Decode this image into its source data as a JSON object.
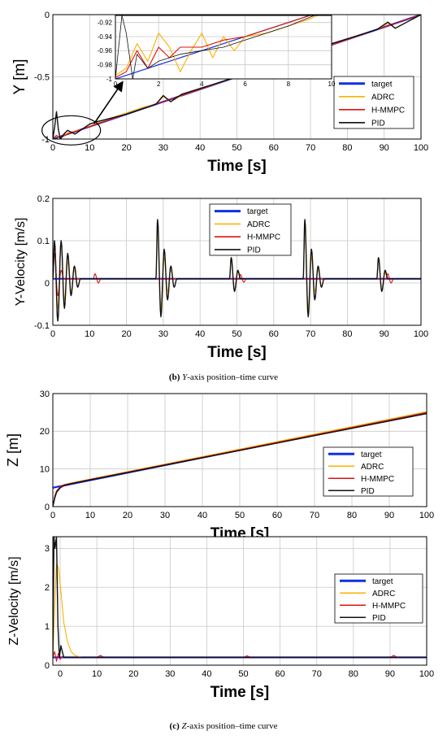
{
  "legend_labels": [
    "target",
    "ADRC",
    "H-MMPC",
    "PID"
  ],
  "colors": {
    "target": "#1030e0",
    "ADRC": "#ffb000",
    "H-MMPC": "#e01010",
    "PID": "#111111",
    "grid": "#c8c8c8"
  },
  "captions": {
    "b": {
      "tag": "(b)",
      "axis": "Y",
      "rest": "-axis position–time curve"
    },
    "c": {
      "tag": "(c)",
      "axis": "Z",
      "rest": "-axis position–time curve"
    }
  },
  "chart_data": [
    {
      "id": "y-position",
      "type": "line",
      "xlabel": "Time [s]",
      "ylabel": "Y [m]",
      "xlim": [
        0,
        100
      ],
      "ylim": [
        -1,
        0
      ],
      "xticks": [
        0,
        10,
        20,
        30,
        40,
        50,
        60,
        70,
        80,
        90,
        100
      ],
      "yticks": [
        {
          "v": -1,
          "t": "-1"
        },
        {
          "v": -0.5,
          "t": "-0.5"
        },
        {
          "v": 0,
          "t": "0"
        }
      ],
      "grid": true,
      "legend": "lower-right",
      "series": [
        {
          "name": "target",
          "x": [
            0,
            100
          ],
          "y": [
            -1,
            0
          ]
        },
        {
          "name": "ADRC",
          "x": [
            0,
            1,
            2,
            4,
            8,
            12,
            25,
            28,
            30,
            32,
            35,
            50,
            68,
            70,
            72,
            75,
            88,
            91,
            93,
            100
          ],
          "y": [
            -0.99,
            -0.97,
            -1.0,
            -0.95,
            -0.92,
            -0.87,
            -0.74,
            -0.72,
            -0.66,
            -0.7,
            -0.65,
            -0.5,
            -0.32,
            -0.26,
            -0.29,
            -0.25,
            -0.12,
            -0.07,
            -0.11,
            0
          ]
        },
        {
          "name": "H-MMPC",
          "x": [
            0,
            1,
            2,
            4,
            10,
            30,
            50,
            70,
            90,
            100
          ],
          "y": [
            -1,
            -0.97,
            -0.99,
            -0.96,
            -0.9,
            -0.7,
            -0.5,
            -0.3,
            -0.1,
            0
          ]
        },
        {
          "name": "PID",
          "x": [
            0,
            0.5,
            1,
            1.5,
            2,
            3,
            4,
            6,
            10,
            12,
            20,
            28,
            30,
            32,
            35,
            50,
            68,
            70,
            72,
            75,
            88,
            91,
            93,
            100
          ],
          "y": [
            -1,
            -0.9,
            -0.78,
            -0.92,
            -1.0,
            -0.96,
            -0.93,
            -0.96,
            -0.88,
            -0.86,
            -0.8,
            -0.72,
            -0.65,
            -0.7,
            -0.64,
            -0.5,
            -0.32,
            -0.25,
            -0.29,
            -0.24,
            -0.12,
            -0.06,
            -0.11,
            0
          ]
        }
      ]
    },
    {
      "id": "y-position-inset",
      "type": "line",
      "xlim": [
        0,
        10
      ],
      "ylim": [
        -1,
        -0.91
      ],
      "xticks": [
        0,
        2,
        4,
        6,
        8,
        10
      ],
      "yticks": [
        {
          "v": -1,
          "t": "-1"
        },
        {
          "v": -0.98,
          "t": "-0.98"
        },
        {
          "v": -0.96,
          "t": "-0.96"
        },
        {
          "v": -0.94,
          "t": "-0.94"
        },
        {
          "v": -0.92,
          "t": "-0.92"
        }
      ],
      "grid": true,
      "series": [
        {
          "name": "target",
          "x": [
            0,
            10
          ],
          "y": [
            -1,
            -0.9
          ]
        },
        {
          "name": "ADRC",
          "x": [
            0,
            0.5,
            1,
            1.5,
            2,
            2.5,
            3,
            3.5,
            4,
            4.5,
            5,
            5.5,
            6,
            7,
            8,
            9,
            10
          ],
          "y": [
            -0.995,
            -0.985,
            -0.95,
            -0.975,
            -0.935,
            -0.955,
            -0.99,
            -0.96,
            -0.935,
            -0.97,
            -0.94,
            -0.96,
            -0.94,
            -0.935,
            -0.925,
            -0.915,
            -0.9
          ]
        },
        {
          "name": "H-MMPC",
          "x": [
            0,
            0.5,
            1,
            1.5,
            2,
            2.5,
            3,
            4,
            5,
            6,
            8,
            10
          ],
          "y": [
            -0.998,
            -0.99,
            -0.96,
            -0.985,
            -0.955,
            -0.97,
            -0.955,
            -0.955,
            -0.945,
            -0.94,
            -0.92,
            -0.9
          ]
        },
        {
          "name": "PID",
          "x": [
            0,
            0.3,
            0.5,
            0.8,
            1,
            1.5,
            2,
            3,
            4,
            5,
            6,
            8,
            10
          ],
          "y": [
            -1,
            -0.91,
            -0.935,
            -1.0,
            -0.965,
            -0.985,
            -0.975,
            -0.965,
            -0.96,
            -0.955,
            -0.945,
            -0.925,
            -0.9
          ]
        }
      ]
    },
    {
      "id": "y-velocity",
      "type": "line",
      "xlabel": "Time [s]",
      "ylabel": "Y-Velocity [m/s]",
      "xlim": [
        0,
        100
      ],
      "ylim": [
        -0.1,
        0.2
      ],
      "xticks": [
        0,
        10,
        20,
        30,
        40,
        50,
        60,
        70,
        80,
        90,
        100
      ],
      "yticks": [
        {
          "v": -0.1,
          "t": "-0.1"
        },
        {
          "v": 0,
          "t": "0"
        },
        {
          "v": 0.1,
          "t": "0.1"
        },
        {
          "v": 0.2,
          "t": "0.2"
        }
      ],
      "grid": true,
      "legend": "top-center",
      "series": [
        {
          "name": "target",
          "x": [
            0,
            100
          ],
          "y": [
            0.01,
            0.01
          ]
        },
        {
          "name": "ADRC",
          "bursts": [
            {
              "t0": 0,
              "amps": [
                0.09,
                -0.07,
                0.08,
                -0.05,
                0.04,
                -0.03,
                0.02
              ]
            },
            {
              "t0": 28,
              "amps": [
                0.12,
                -0.07,
                0.05,
                -0.03,
                0.02
              ]
            },
            {
              "t0": 48,
              "amps": [
                0.05,
                -0.03,
                0.015
              ]
            },
            {
              "t0": 68,
              "amps": [
                0.12,
                -0.07,
                0.05,
                -0.03,
                0.02
              ]
            },
            {
              "t0": 88,
              "amps": [
                0.05,
                -0.03,
                0.015
              ]
            }
          ],
          "base": 0.01
        },
        {
          "name": "H-MMPC",
          "bursts": [
            {
              "t0": 0,
              "amps": [
                0.06,
                -0.04,
                0.02
              ]
            },
            {
              "t0": 11,
              "amps": [
                0.012,
                -0.01
              ]
            },
            {
              "t0": 50.5,
              "amps": [
                0.01,
                -0.008
              ]
            },
            {
              "t0": 90.5,
              "amps": [
                0.012,
                -0.01
              ]
            }
          ],
          "base": 0.01
        },
        {
          "name": "PID",
          "bursts": [
            {
              "t0": 0,
              "amps": [
                0.09,
                -0.1,
                0.09,
                -0.07,
                0.06,
                -0.04,
                0.03,
                -0.02
              ]
            },
            {
              "t0": 28,
              "amps": [
                0.14,
                -0.09,
                0.07,
                -0.05,
                0.03,
                -0.02
              ]
            },
            {
              "t0": 48,
              "amps": [
                0.05,
                -0.03,
                0.02
              ]
            },
            {
              "t0": 68,
              "amps": [
                0.14,
                -0.09,
                0.07,
                -0.05,
                0.03,
                -0.02
              ]
            },
            {
              "t0": 88,
              "amps": [
                0.05,
                -0.03,
                0.02
              ]
            }
          ],
          "base": 0.01
        }
      ]
    },
    {
      "id": "z-position",
      "type": "line",
      "xlabel": "Time [s]",
      "ylabel": "Z [m]",
      "xlim": [
        0,
        100
      ],
      "ylim": [
        0,
        30
      ],
      "xticks": [
        0,
        10,
        20,
        30,
        40,
        50,
        60,
        70,
        80,
        90,
        100
      ],
      "yticks": [
        {
          "v": 0,
          "t": "0"
        },
        {
          "v": 10,
          "t": "10"
        },
        {
          "v": 20,
          "t": "20"
        },
        {
          "v": 30,
          "t": "30"
        }
      ],
      "grid": true,
      "legend": "lower-right",
      "series": [
        {
          "name": "target",
          "x": [
            0,
            100
          ],
          "y": [
            5,
            25
          ]
        },
        {
          "name": "ADRC",
          "x": [
            0,
            0.5,
            1,
            2,
            3,
            5,
            10,
            100
          ],
          "y": [
            0,
            2.5,
            4,
            5.2,
            5.8,
            6.3,
            7.3,
            25.2
          ]
        },
        {
          "name": "H-MMPC",
          "x": [
            0,
            0.5,
            1,
            2,
            3,
            5,
            10,
            100
          ],
          "y": [
            0,
            2.8,
            4.2,
            5.3,
            5.8,
            6.2,
            7.2,
            24.9
          ]
        },
        {
          "name": "PID",
          "x": [
            0,
            0.5,
            1,
            2,
            3,
            5,
            10,
            100
          ],
          "y": [
            0,
            2.2,
            3.8,
            5.0,
            5.6,
            6.1,
            7.1,
            24.7
          ]
        }
      ]
    },
    {
      "id": "z-velocity",
      "type": "line",
      "xlabel": "Time [s]",
      "ylabel": "Z-Velocity [m/s]",
      "xlim": [
        -2,
        100
      ],
      "ylim": [
        0,
        3.3
      ],
      "xticks": [
        0,
        10,
        20,
        30,
        40,
        50,
        60,
        70,
        80,
        90,
        100
      ],
      "yticks": [
        {
          "v": 0,
          "t": "0"
        },
        {
          "v": 1,
          "t": "1"
        },
        {
          "v": 2,
          "t": "2"
        },
        {
          "v": 3,
          "t": "3"
        }
      ],
      "grid": true,
      "legend": "top-right",
      "series": [
        {
          "name": "target",
          "x": [
            -2,
            100
          ],
          "y": [
            0.2,
            0.2
          ]
        },
        {
          "name": "ADRC",
          "x": [
            -2,
            -1.5,
            -1,
            -0.5,
            0,
            0.5,
            1,
            2,
            3,
            4,
            6,
            8,
            100
          ],
          "y": [
            0.2,
            1.5,
            2.6,
            2.5,
            2.1,
            1.6,
            1.1,
            0.6,
            0.35,
            0.25,
            0.2,
            0.2,
            0.2
          ]
        },
        {
          "name": "H-MMPC",
          "x": [
            -2,
            -1.5,
            -1,
            -0.5,
            0,
            0.5,
            1,
            10,
            11,
            12,
            50,
            51,
            52,
            90,
            91,
            92,
            100
          ],
          "y": [
            0.2,
            0.35,
            0.1,
            0.3,
            0.15,
            0.22,
            0.2,
            0.2,
            0.25,
            0.2,
            0.2,
            0.24,
            0.2,
            0.2,
            0.25,
            0.2,
            0.2
          ]
        },
        {
          "name": "PID",
          "x": [
            -2,
            -1.7,
            -1.4,
            -1,
            -0.6,
            -0.2,
            0.2,
            1,
            2,
            100
          ],
          "y": [
            0.2,
            3.3,
            3.0,
            3.3,
            1.0,
            0.2,
            0.5,
            0.2,
            0.2,
            0.2
          ]
        }
      ]
    }
  ]
}
